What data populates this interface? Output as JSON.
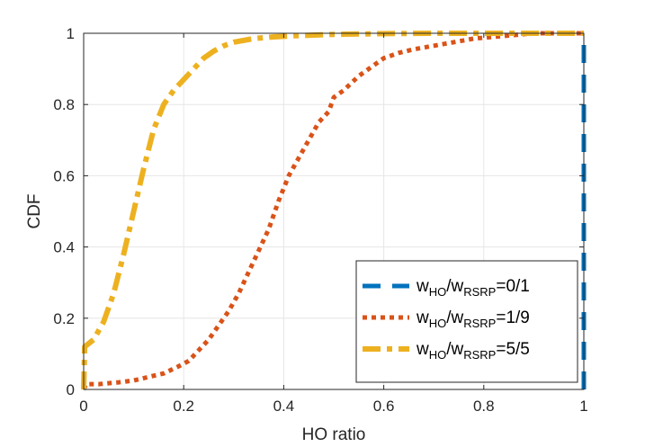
{
  "chart_data": {
    "type": "line",
    "title": "",
    "xlabel": "HO ratio",
    "ylabel": "CDF",
    "xlim": [
      0,
      1
    ],
    "ylim": [
      0,
      1
    ],
    "xticks": [
      "0",
      "0.2",
      "0.4",
      "0.6",
      "0.8",
      "1"
    ],
    "yticks": [
      "0",
      "0.2",
      "0.4",
      "0.6",
      "0.8",
      "1"
    ],
    "grid": true,
    "legend_position": "bottom-right",
    "series": [
      {
        "name": "w_HO/w_RSRP=0/1",
        "legend": {
          "w1": "w",
          "s1": "HO",
          "slash": "/w",
          "s2": "RSRP",
          "val": "=0/1"
        },
        "color": "#0072BD",
        "style": "dashed",
        "x": [
          1,
          1
        ],
        "y": [
          0,
          1
        ]
      },
      {
        "name": "w_HO/w_RSRP=1/9",
        "legend": {
          "w1": "w",
          "s1": "HO",
          "slash": "/w",
          "s2": "RSRP",
          "val": "=1/9"
        },
        "color": "#D95319",
        "style": "dotted",
        "x": [
          0,
          0.005,
          0.03,
          0.07,
          0.1,
          0.13,
          0.16,
          0.19,
          0.21,
          0.23,
          0.25,
          0.27,
          0.29,
          0.31,
          0.33,
          0.35,
          0.37,
          0.39,
          0.41,
          0.43,
          0.45,
          0.47,
          0.49,
          0.5,
          0.52,
          0.55,
          0.58,
          0.6,
          0.63,
          0.66,
          0.7,
          0.74,
          0.78,
          0.82,
          0.86,
          0.9,
          0.95,
          1.0
        ],
        "y": [
          0,
          0.015,
          0.015,
          0.02,
          0.025,
          0.035,
          0.045,
          0.065,
          0.08,
          0.11,
          0.14,
          0.18,
          0.22,
          0.27,
          0.33,
          0.39,
          0.45,
          0.53,
          0.6,
          0.65,
          0.7,
          0.75,
          0.78,
          0.82,
          0.84,
          0.88,
          0.91,
          0.93,
          0.945,
          0.955,
          0.965,
          0.975,
          0.985,
          0.99,
          0.995,
          1.0,
          1.0,
          1.0
        ]
      },
      {
        "name": "w_HO/w_RSRP=5/5",
        "legend": {
          "w1": "w",
          "s1": "HO",
          "slash": "/w",
          "s2": "RSRP",
          "val": "=5/5"
        },
        "color": "#EDB120",
        "style": "dashdot",
        "x": [
          0,
          0.002,
          0.02,
          0.04,
          0.06,
          0.08,
          0.1,
          0.12,
          0.14,
          0.16,
          0.18,
          0.2,
          0.22,
          0.24,
          0.26,
          0.28,
          0.3,
          0.34,
          0.38,
          0.42,
          0.5,
          0.6,
          0.7,
          0.8,
          0.9,
          1.0
        ],
        "y": [
          0,
          0.12,
          0.14,
          0.19,
          0.27,
          0.38,
          0.5,
          0.62,
          0.73,
          0.8,
          0.84,
          0.87,
          0.9,
          0.93,
          0.95,
          0.965,
          0.975,
          0.985,
          0.99,
          0.993,
          0.997,
          0.999,
          1.0,
          1.0,
          1.0,
          1.0
        ]
      }
    ]
  }
}
